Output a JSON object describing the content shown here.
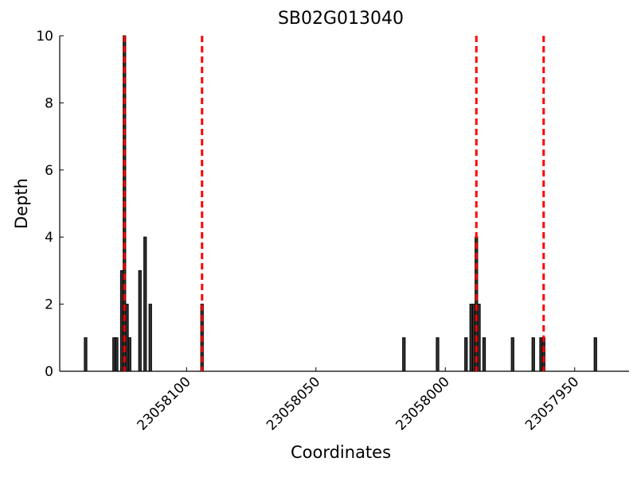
{
  "chart_data": {
    "type": "bar",
    "title": "SB02G013040",
    "x_label": "Coordinates",
    "y_label": "Depth",
    "x": [
      23058139,
      23058128,
      23058127,
      23058125,
      23058124,
      23058123,
      23058122,
      23058118,
      23058116,
      23058114,
      23058094,
      23058016,
      23058003,
      23057992,
      23057990,
      23057989,
      23057988,
      23057987,
      23057985,
      23057974,
      23057966,
      23057963,
      23057962,
      23057942
    ],
    "values": [
      1,
      1,
      1,
      3,
      10,
      2,
      1,
      3,
      4,
      2,
      2,
      1,
      1,
      1,
      2,
      2,
      4,
      2,
      1,
      1,
      1,
      1,
      1,
      1
    ],
    "color": "#333333",
    "vlines": [
      23058124,
      23058094,
      23057988,
      23057962
    ],
    "vline_color": "#ff0000",
    "xlim": [
      23058149,
      23057929
    ],
    "xticks": [
      23058100,
      23058050,
      23058000,
      23057950
    ],
    "ylim": [
      0,
      10
    ],
    "yticks": [
      0,
      2,
      4,
      6,
      8,
      10
    ],
    "grid": false
  }
}
